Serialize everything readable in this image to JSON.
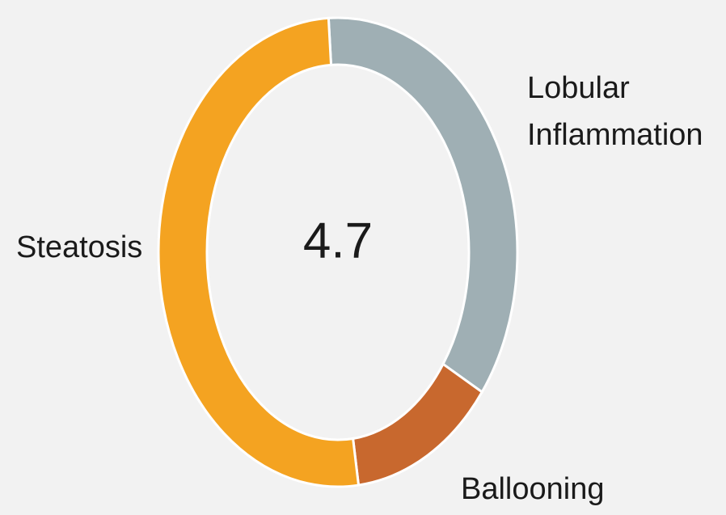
{
  "chart_data": {
    "type": "donut",
    "center_label": 4.7,
    "categories": [
      "Lobular Inflammation",
      "Ballooning",
      "Steatosis"
    ],
    "values": [
      36,
      13,
      51
    ],
    "colors": [
      "#9fafb4",
      "#c8682e",
      "#f4a321"
    ]
  }
}
